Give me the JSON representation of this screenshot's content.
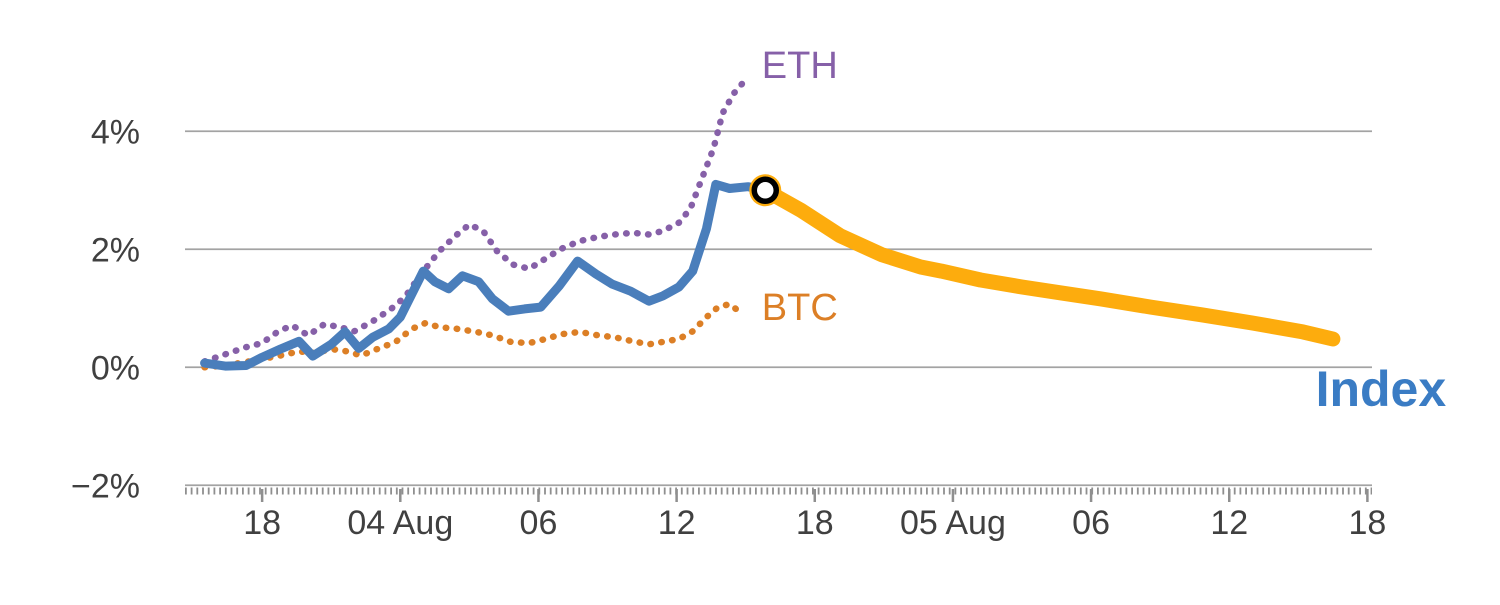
{
  "chart_data": {
    "type": "line",
    "title": "",
    "grid": true,
    "xlim": [
      -1.35,
      50.2
    ],
    "ylim": [
      -2.08,
      5.92
    ],
    "colors": {
      "grid": "#a3a3a3",
      "axis": "#8f8f8f",
      "tick_text": "#404040",
      "eth": "#8660a8",
      "btc": "#dc7f26",
      "index": "#4a7ebb",
      "index_projection": "#fdac0d",
      "index_label": "#3a7cc4",
      "marker_ring": "#000000",
      "marker_fill": "#ffffff"
    },
    "yticks": [
      {
        "value": 4,
        "label": "4%"
      },
      {
        "value": 2,
        "label": "2%"
      },
      {
        "value": 0,
        "label": "0%"
      },
      {
        "value": -2,
        "label": "−2%"
      }
    ],
    "xticks": [
      {
        "value": 2,
        "label": "18"
      },
      {
        "value": 8,
        "label": "04 Aug"
      },
      {
        "value": 14,
        "label": "06"
      },
      {
        "value": 20,
        "label": "12"
      },
      {
        "value": 26,
        "label": "18"
      },
      {
        "value": 32,
        "label": "05 Aug"
      },
      {
        "value": 38,
        "label": "06"
      },
      {
        "value": 44,
        "label": "12"
      },
      {
        "value": 50,
        "label": "18"
      }
    ],
    "series": [
      {
        "name": "ETH",
        "color": "#8660a8",
        "style": "dotted",
        "width": 6.5,
        "x": [
          -0.5,
          0.4,
          1.3,
          2.0,
          2.7,
          3.3,
          4.0,
          4.7,
          5.4,
          6.0,
          6.8,
          7.6,
          8.2,
          8.9,
          9.7,
          10.4,
          11.0,
          11.6,
          12.2,
          12.9,
          13.6,
          14.3,
          15.0,
          15.8,
          16.6,
          17.3,
          18.1,
          18.8,
          19.4,
          20.1,
          20.6,
          21.1,
          21.6,
          22.0,
          22.5,
          22.9,
          23.2
        ],
        "y": [
          0.1,
          0.22,
          0.34,
          0.41,
          0.61,
          0.71,
          0.54,
          0.73,
          0.68,
          0.61,
          0.78,
          0.99,
          1.19,
          1.58,
          1.97,
          2.23,
          2.42,
          2.31,
          1.97,
          1.74,
          1.67,
          1.84,
          2.01,
          2.14,
          2.21,
          2.25,
          2.28,
          2.25,
          2.31,
          2.45,
          2.69,
          3.2,
          3.71,
          4.31,
          4.65,
          4.83,
          4.9
        ],
        "label": {
          "text": "ETH",
          "x": 23.7,
          "y": 4.9,
          "size": 38,
          "weight": "normal",
          "color": "#8660a8"
        }
      },
      {
        "name": "BTC",
        "color": "#dc7f26",
        "style": "dotted",
        "width": 6.5,
        "x": [
          -0.5,
          0.4,
          1.3,
          2.0,
          2.8,
          3.6,
          4.3,
          5.0,
          5.7,
          6.3,
          7.0,
          7.8,
          8.5,
          9.1,
          9.7,
          10.5,
          11.3,
          12.0,
          12.8,
          13.6,
          14.3,
          15.0,
          15.8,
          16.6,
          17.3,
          18.1,
          18.8,
          19.4,
          20.1,
          20.7,
          21.3,
          21.8,
          22.3,
          22.7
        ],
        "y": [
          0.0,
          0.03,
          0.09,
          0.14,
          0.2,
          0.27,
          0.24,
          0.31,
          0.27,
          0.2,
          0.31,
          0.43,
          0.65,
          0.75,
          0.68,
          0.65,
          0.6,
          0.54,
          0.43,
          0.41,
          0.48,
          0.56,
          0.6,
          0.54,
          0.51,
          0.44,
          0.39,
          0.43,
          0.48,
          0.61,
          0.85,
          1.02,
          1.07,
          0.95
        ],
        "label": {
          "text": "BTC",
          "x": 23.7,
          "y": 0.8,
          "size": 38,
          "weight": "normal",
          "color": "#dc7f26"
        }
      },
      {
        "name": "Index",
        "color": "#4a7ebb",
        "style": "solid",
        "width": 9,
        "x": [
          -0.5,
          0.4,
          1.3,
          2.0,
          2.8,
          3.6,
          4.2,
          5.0,
          5.6,
          6.2,
          6.8,
          7.5,
          8.0,
          8.5,
          9.0,
          9.5,
          10.1,
          10.7,
          11.4,
          12.0,
          12.7,
          13.4,
          14.1,
          14.9,
          15.7,
          16.5,
          17.2,
          18.0,
          18.8,
          19.4,
          20.1,
          20.7,
          21.3,
          21.7,
          22.3,
          23.1,
          23.85
        ],
        "y": [
          0.07,
          0.02,
          0.03,
          0.17,
          0.31,
          0.44,
          0.19,
          0.39,
          0.6,
          0.32,
          0.51,
          0.65,
          0.85,
          1.24,
          1.63,
          1.45,
          1.33,
          1.55,
          1.45,
          1.16,
          0.95,
          0.99,
          1.02,
          1.38,
          1.8,
          1.58,
          1.41,
          1.29,
          1.12,
          1.21,
          1.36,
          1.63,
          2.35,
          3.1,
          3.03,
          3.06,
          3.0
        ],
        "label": null
      },
      {
        "name": "Index projection",
        "color": "#fdac0d",
        "style": "solid",
        "width": 15,
        "x": [
          23.85,
          25.4,
          27.1,
          28.9,
          30.6,
          31.5,
          33.2,
          35.0,
          36.7,
          38.4,
          40.6,
          42.8,
          45.0,
          47.2,
          48.5
        ],
        "y": [
          3.0,
          2.66,
          2.23,
          1.91,
          1.7,
          1.63,
          1.48,
          1.36,
          1.26,
          1.16,
          1.02,
          0.89,
          0.75,
          0.6,
          0.48
        ],
        "label": {
          "text": "Index",
          "x": 47.75,
          "y": -0.66,
          "size": 50,
          "weight": "bold",
          "color": "#3a7cc4"
        }
      }
    ],
    "marker": {
      "x": 23.85,
      "y": 3.0,
      "halo_color": "#fdac0d",
      "ring_color": "#000000",
      "fill": "#ffffff"
    }
  }
}
